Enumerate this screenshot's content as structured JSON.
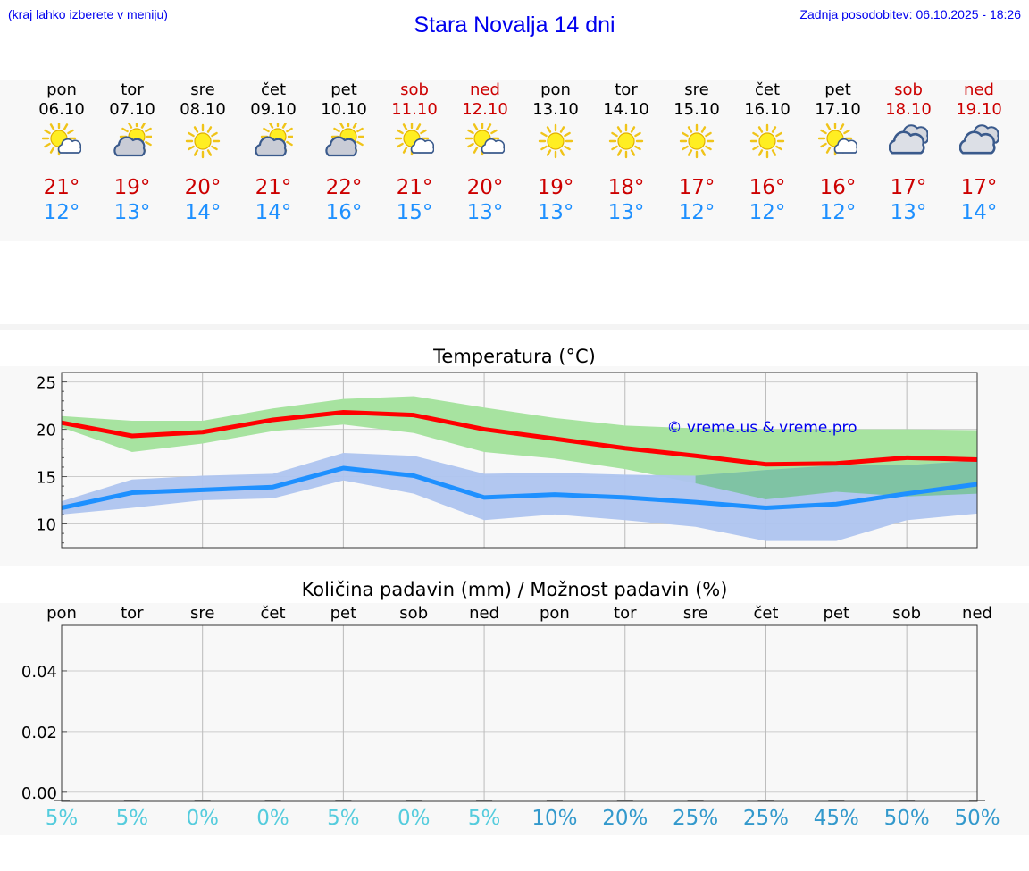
{
  "header": {
    "hint": "(kraj lahko izberete v meniju)",
    "title": "Stara Novalja 14 dni",
    "updated": "Zadnja posodobitev: 06.10.2025 - 18:26"
  },
  "days": [
    {
      "name": "pon",
      "date": "06.10",
      "icon": "partly-sunny-icon",
      "tmax": "21°",
      "tmin": "12°",
      "weekend": false
    },
    {
      "name": "tor",
      "date": "07.10",
      "icon": "sun-behind-cloud-icon",
      "tmax": "19°",
      "tmin": "13°",
      "weekend": false
    },
    {
      "name": "sre",
      "date": "08.10",
      "icon": "sun-icon",
      "tmax": "20°",
      "tmin": "14°",
      "weekend": false
    },
    {
      "name": "čet",
      "date": "09.10",
      "icon": "sun-behind-cloud-icon",
      "tmax": "21°",
      "tmin": "14°",
      "weekend": false
    },
    {
      "name": "pet",
      "date": "10.10",
      "icon": "sun-behind-cloud-icon",
      "tmax": "22°",
      "tmin": "16°",
      "weekend": false
    },
    {
      "name": "sob",
      "date": "11.10",
      "icon": "partly-sunny-icon",
      "tmax": "21°",
      "tmin": "15°",
      "weekend": true
    },
    {
      "name": "ned",
      "date": "12.10",
      "icon": "partly-sunny-icon",
      "tmax": "20°",
      "tmin": "13°",
      "weekend": true
    },
    {
      "name": "pon",
      "date": "13.10",
      "icon": "sun-icon",
      "tmax": "19°",
      "tmin": "13°",
      "weekend": false
    },
    {
      "name": "tor",
      "date": "14.10",
      "icon": "sun-icon",
      "tmax": "18°",
      "tmin": "13°",
      "weekend": false
    },
    {
      "name": "sre",
      "date": "15.10",
      "icon": "sun-icon",
      "tmax": "17°",
      "tmin": "12°",
      "weekend": false
    },
    {
      "name": "čet",
      "date": "16.10",
      "icon": "sun-icon",
      "tmax": "16°",
      "tmin": "12°",
      "weekend": false
    },
    {
      "name": "pet",
      "date": "17.10",
      "icon": "partly-sunny-icon",
      "tmax": "16°",
      "tmin": "12°",
      "weekend": false
    },
    {
      "name": "sob",
      "date": "18.10",
      "icon": "cloud-icon",
      "tmax": "17°",
      "tmin": "13°",
      "weekend": true
    },
    {
      "name": "ned",
      "date": "19.10",
      "icon": "cloud-icon",
      "tmax": "17°",
      "tmin": "14°",
      "weekend": true
    }
  ],
  "colors": {
    "max_line": "#ff0000",
    "max_band": "#a7e3a0",
    "min_line": "#1e90ff",
    "min_band": "#aec4ef",
    "overlap_band": "#7fc3a4",
    "pct_light": "#55ccdd",
    "pct_dark": "#3399cc",
    "weekend": "#cc0000"
  },
  "chart_data": [
    {
      "type": "line",
      "title": "Temperatura (°C)",
      "watermark": "© vreme.us & vreme.pro",
      "ylim": [
        7.5,
        26
      ],
      "yticks": [
        10,
        15,
        20,
        25
      ],
      "x": [
        0,
        1,
        2,
        3,
        4,
        5,
        6,
        7,
        8,
        9,
        10,
        11,
        12,
        13
      ],
      "series": [
        {
          "name": "max",
          "values": [
            20.7,
            19.3,
            19.7,
            21.0,
            21.8,
            21.5,
            20.0,
            19.0,
            18.0,
            17.2,
            16.3,
            16.4,
            17.0,
            16.8
          ],
          "band_high": [
            21.4,
            20.9,
            20.9,
            22.2,
            23.2,
            23.5,
            22.3,
            21.2,
            20.4,
            20.1,
            20.0,
            20.0,
            20.0,
            19.9
          ],
          "band_low": [
            20.2,
            17.6,
            18.5,
            19.8,
            20.5,
            19.6,
            17.6,
            16.9,
            15.8,
            14.3,
            12.6,
            13.4,
            12.9,
            13.2
          ]
        },
        {
          "name": "min",
          "values": [
            11.7,
            13.3,
            13.6,
            13.9,
            15.9,
            15.1,
            12.8,
            13.1,
            12.8,
            12.3,
            11.7,
            12.1,
            13.2,
            14.2
          ],
          "band_high": [
            12.4,
            14.7,
            15.1,
            15.3,
            17.5,
            17.2,
            15.3,
            15.4,
            15.2,
            15.1,
            15.7,
            16.2,
            16.2,
            16.7
          ],
          "band_low": [
            11.0,
            11.7,
            12.5,
            12.7,
            14.6,
            13.2,
            10.4,
            11.0,
            10.4,
            9.7,
            8.2,
            8.2,
            10.4,
            11.1
          ]
        }
      ]
    },
    {
      "type": "bar",
      "title": "Količina padavin (mm) / Možnost padavin (%)",
      "ylim": [
        -0.003,
        0.055
      ],
      "yticks": [
        "0.00",
        "0.02",
        "0.04"
      ],
      "ytick_values": [
        0,
        0.02,
        0.04
      ],
      "categories": [
        "pon",
        "tor",
        "sre",
        "čet",
        "pet",
        "sob",
        "ned",
        "pon",
        "tor",
        "sre",
        "čet",
        "pet",
        "sob",
        "ned"
      ],
      "values": [
        0,
        0,
        0,
        0,
        0,
        0,
        0,
        0,
        0,
        0,
        0,
        0,
        0,
        0
      ],
      "chance_pct": [
        5,
        5,
        0,
        0,
        5,
        0,
        5,
        10,
        20,
        25,
        25,
        45,
        50,
        50
      ],
      "chance_labels": [
        "5%",
        "5%",
        "0%",
        "0%",
        "5%",
        "0%",
        "5%",
        "10%",
        "20%",
        "25%",
        "25%",
        "45%",
        "50%",
        "50%"
      ]
    }
  ]
}
